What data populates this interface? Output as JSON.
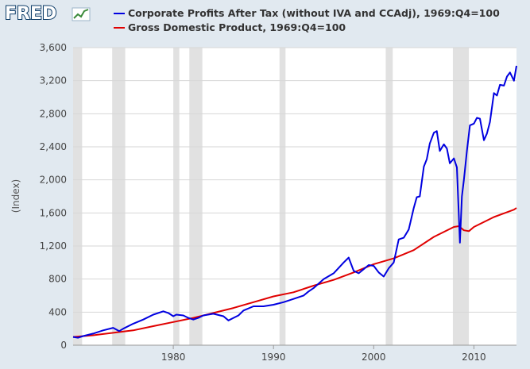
{
  "brand": {
    "name": "FRED"
  },
  "chart_data": {
    "type": "line",
    "ylabel": "(Index)",
    "ylim": [
      0,
      3600
    ],
    "xlim": [
      1970.0,
      2014.25
    ],
    "y_ticks": [
      0,
      400,
      800,
      1200,
      1600,
      2000,
      2400,
      2800,
      3200,
      3600
    ],
    "y_tick_labels": [
      "0",
      "400",
      "800",
      "1,200",
      "1,600",
      "2,000",
      "2,400",
      "2,800",
      "3,200",
      "3,600"
    ],
    "x_ticks": [
      1980,
      1990,
      2000,
      2010
    ],
    "x_tick_labels": [
      "1980",
      "1990",
      "2000",
      "2010"
    ],
    "grid": "horizontal",
    "legend_position": "top-left",
    "recessions": [
      [
        1970.0,
        1970.9
      ],
      [
        1973.9,
        1975.2
      ],
      [
        1980.0,
        1980.6
      ],
      [
        1981.6,
        1982.9
      ],
      [
        1990.6,
        1991.2
      ],
      [
        2001.2,
        2001.9
      ],
      [
        2007.9,
        2009.5
      ]
    ],
    "series": [
      {
        "name": "Corporate Profits After Tax (without IVA and CCAdj), 1969:Q4=100",
        "color": "#0000e0",
        "x": [
          1970.0,
          1970.5,
          1971.0,
          1972.0,
          1973.0,
          1974.0,
          1974.6,
          1975.0,
          1976.0,
          1977.0,
          1978.0,
          1979.0,
          1979.5,
          1980.0,
          1980.3,
          1981.0,
          1981.5,
          1982.0,
          1982.5,
          1983.0,
          1984.0,
          1985.0,
          1985.5,
          1986.0,
          1986.5,
          1987.0,
          1988.0,
          1989.0,
          1990.0,
          1991.0,
          1992.0,
          1993.0,
          1993.5,
          1994.0,
          1995.0,
          1996.0,
          1997.0,
          1997.5,
          1998.0,
          1998.5,
          1999.0,
          1999.5,
          2000.0,
          2000.5,
          2001.0,
          2001.5,
          2002.0,
          2002.5,
          2003.0,
          2003.5,
          2004.0,
          2004.3,
          2004.6,
          2005.0,
          2005.3,
          2005.6,
          2006.0,
          2006.3,
          2006.6,
          2007.0,
          2007.3,
          2007.6,
          2008.0,
          2008.3,
          2008.6,
          2008.8,
          2009.0,
          2009.3,
          2009.6,
          2010.0,
          2010.3,
          2010.6,
          2011.0,
          2011.3,
          2011.6,
          2012.0,
          2012.3,
          2012.6,
          2013.0,
          2013.3,
          2013.6,
          2014.0,
          2014.25
        ],
        "values": [
          100,
          90,
          110,
          140,
          180,
          210,
          170,
          200,
          260,
          310,
          370,
          410,
          390,
          350,
          370,
          360,
          330,
          310,
          330,
          360,
          380,
          350,
          300,
          330,
          360,
          420,
          470,
          470,
          490,
          520,
          560,
          600,
          650,
          690,
          800,
          870,
          1000,
          1060,
          900,
          870,
          920,
          970,
          960,
          880,
          830,
          930,
          1000,
          1280,
          1300,
          1400,
          1660,
          1790,
          1800,
          2160,
          2250,
          2440,
          2570,
          2590,
          2350,
          2430,
          2380,
          2200,
          2260,
          2150,
          1240,
          1800,
          2000,
          2350,
          2660,
          2680,
          2750,
          2740,
          2480,
          2560,
          2700,
          3050,
          3020,
          3150,
          3140,
          3250,
          3300,
          3200,
          3380
        ]
      },
      {
        "name": "Gross Domestic Product, 1969:Q4=100",
        "color": "#e00000",
        "x": [
          1970.0,
          1972.0,
          1974.0,
          1976.0,
          1978.0,
          1980.0,
          1982.0,
          1984.0,
          1986.0,
          1988.0,
          1990.0,
          1992.0,
          1994.0,
          1996.0,
          1998.0,
          2000.0,
          2002.0,
          2004.0,
          2006.0,
          2008.0,
          2008.5,
          2009.0,
          2009.5,
          2010.0,
          2012.0,
          2014.0,
          2014.25
        ],
        "values": [
          100,
          120,
          150,
          180,
          230,
          280,
          330,
          390,
          450,
          520,
          590,
          640,
          720,
          790,
          880,
          980,
          1050,
          1150,
          1310,
          1430,
          1440,
          1390,
          1380,
          1430,
          1550,
          1640,
          1660
        ]
      }
    ]
  }
}
